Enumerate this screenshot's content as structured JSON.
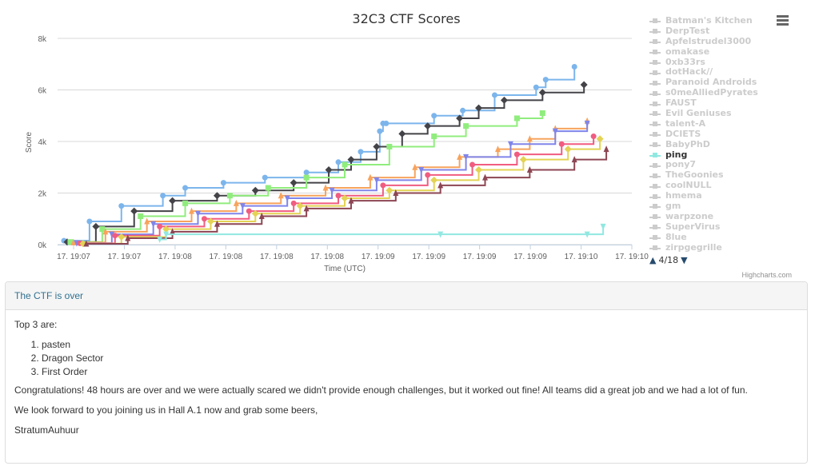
{
  "chart_data": {
    "type": "line",
    "title": "32C3 CTF Scores",
    "xlabel": "Time (UTC)",
    "ylabel": "Score",
    "ylim": [
      0,
      8000
    ],
    "yticks": [
      0,
      2000,
      4000,
      6000,
      8000
    ],
    "ytick_labels": [
      "0k",
      "2k",
      "4k",
      "6k",
      "8k"
    ],
    "xtick_labels": [
      "17. 19:07",
      "17. 19:07",
      "17. 19:08",
      "17. 19:08",
      "17. 19:08",
      "17. 19:08",
      "17. 19:09",
      "17. 19:09",
      "17. 19:09",
      "17. 19:09",
      "17. 19:10",
      "17. 19:10"
    ],
    "x_unit": "seconds after 19:07:00",
    "xlim": [
      0,
      180
    ],
    "grid": true,
    "legend_position": "right",
    "series": [
      {
        "name": "pasten",
        "color": "#7cb5ec",
        "marker": "circle",
        "visible": true,
        "x": [
          2,
          10,
          20,
          33,
          40,
          52,
          65,
          78,
          88,
          95,
          101,
          102,
          103,
          118,
          127,
          137,
          150,
          153,
          162
        ],
        "y": [
          150,
          900,
          1500,
          1900,
          2200,
          2400,
          2600,
          2800,
          3200,
          3600,
          4400,
          4700,
          4700,
          5000,
          5200,
          5800,
          6100,
          6400,
          6900
        ]
      },
      {
        "name": "Dragon Sector",
        "color": "#434348",
        "marker": "diamond",
        "visible": true,
        "x": [
          3,
          12,
          24,
          36,
          50,
          62,
          74,
          85,
          92,
          100,
          108,
          116,
          126,
          132,
          140,
          152,
          165
        ],
        "y": [
          100,
          700,
          1300,
          1700,
          1900,
          2100,
          2400,
          2900,
          3300,
          3800,
          4300,
          4600,
          4900,
          5300,
          5600,
          5900,
          6200
        ]
      },
      {
        "name": "First Order",
        "color": "#90ed7d",
        "marker": "square",
        "visible": true,
        "x": [
          4,
          14,
          26,
          40,
          54,
          66,
          78,
          90,
          104,
          118,
          128,
          144,
          152
        ],
        "y": [
          100,
          600,
          1100,
          1600,
          1900,
          2200,
          2600,
          3100,
          3800,
          4200,
          4600,
          4900,
          5100
        ]
      },
      {
        "name": "Batman's Kitchen",
        "color": "#f7a35c",
        "marker": "triangle",
        "visible": true,
        "x": [
          5,
          15,
          28,
          42,
          56,
          70,
          84,
          98,
          112,
          126,
          138,
          148,
          156,
          166
        ],
        "y": [
          80,
          500,
          900,
          1300,
          1600,
          1900,
          2200,
          2600,
          3000,
          3400,
          3700,
          4100,
          4500,
          4800
        ]
      },
      {
        "name": "DerpTest",
        "color": "#8085e9",
        "marker": "triangle-down",
        "visible": true,
        "x": [
          6,
          17,
          30,
          44,
          58,
          72,
          86,
          100,
          114,
          128,
          142,
          156,
          166
        ],
        "y": [
          60,
          400,
          800,
          1200,
          1500,
          1800,
          2100,
          2500,
          2900,
          3400,
          3900,
          4400,
          4700
        ]
      },
      {
        "name": "Apfelstrudel3000",
        "color": "#f15c80",
        "marker": "circle",
        "visible": true,
        "x": [
          7,
          18,
          32,
          46,
          60,
          74,
          88,
          102,
          116,
          130,
          144,
          158,
          168
        ],
        "y": [
          50,
          350,
          700,
          1000,
          1300,
          1600,
          1900,
          2300,
          2700,
          3100,
          3500,
          3900,
          4200
        ]
      },
      {
        "name": "omakase",
        "color": "#e4d354",
        "marker": "diamond",
        "visible": true,
        "x": [
          8,
          20,
          34,
          48,
          62,
          76,
          90,
          104,
          118,
          132,
          146,
          160,
          170
        ],
        "y": [
          40,
          300,
          600,
          900,
          1200,
          1500,
          1800,
          2100,
          2500,
          2900,
          3300,
          3700,
          4100
        ]
      },
      {
        "name": "0xb33rs",
        "color": "#8d4653",
        "marker": "triangle",
        "visible": true,
        "x": [
          9,
          22,
          36,
          50,
          64,
          78,
          92,
          106,
          120,
          134,
          148,
          162,
          172
        ],
        "y": [
          30,
          250,
          500,
          800,
          1100,
          1400,
          1700,
          2000,
          2300,
          2600,
          2900,
          3300,
          3700
        ]
      },
      {
        "name": "ping",
        "color": "#91e8e1",
        "marker": "triangle-down",
        "visible": true,
        "x": [
          32,
          34,
          120,
          166,
          171
        ],
        "y": [
          200,
          400,
          400,
          400,
          700
        ]
      }
    ]
  },
  "legend": {
    "items": [
      "Batman's Kitchen",
      "DerpTest",
      "Apfelstrudel3000",
      "omakase",
      "0xb33rs",
      "dotHack//",
      "Paranoid Androids",
      "s0meAlliedPyrates",
      "FAUST",
      "Evil Geniuses",
      "talent-A",
      "DCIETS",
      "BabyPhD",
      "ping",
      "pony7",
      "TheGoonies",
      "coolNULL",
      "hmema",
      "gm",
      "warpzone",
      "SuperVirus",
      "8lue",
      "zirpgegrille"
    ],
    "active_item": "ping",
    "page_label": "4/18",
    "prev_icon": "arrow-up-icon",
    "next_icon": "arrow-down-icon"
  },
  "menu_icon": "hamburger-menu-icon",
  "credits": "Highcharts.com",
  "panel": {
    "heading": "The CTF is over",
    "intro": "Top 3 are:",
    "top3": [
      "pasten",
      "Dragon Sector",
      "First Order"
    ],
    "paragraph1": "Congratulations! 48 hours are over and we were actually scared we didn't provide enough challenges, but it worked out fine! All teams did a great job and we had a lot of fun.",
    "paragraph2": "We look forward to you joining us in Hall A.1 now and grab some beers,",
    "signature": "StratumAuhuur"
  }
}
